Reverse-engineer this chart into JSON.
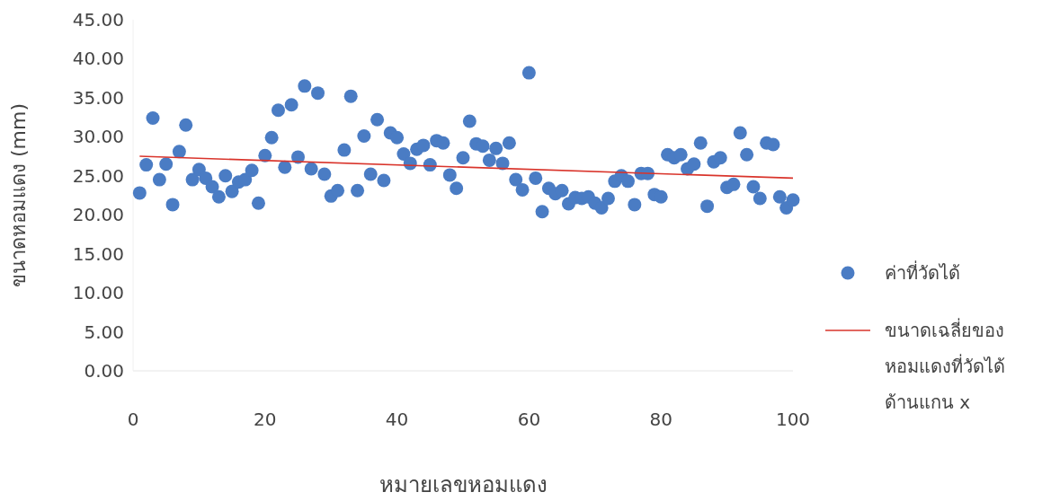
{
  "chart_data": {
    "type": "scatter",
    "xlabel": "หมายเลขหอมแดง",
    "ylabel": "ขนาดหอมแดง (mm)",
    "xlim": [
      0,
      100
    ],
    "xticks": [
      0,
      20,
      40,
      60,
      80,
      100
    ],
    "ylim": [
      0,
      45
    ],
    "yticks": [
      {
        "value": 0,
        "label": "0.00"
      },
      {
        "value": 5,
        "label": "5.00"
      },
      {
        "value": 10,
        "label": "10.00"
      },
      {
        "value": 15,
        "label": "15.00"
      },
      {
        "value": 20,
        "label": "20.00"
      },
      {
        "value": 25,
        "label": "25.00"
      },
      {
        "value": 30,
        "label": "30.00"
      },
      {
        "value": 35,
        "label": "35.00"
      },
      {
        "value": 40,
        "label": "40.00"
      },
      {
        "value": 45,
        "label": "45.00"
      }
    ],
    "grid": false,
    "legend": "right",
    "series": [
      {
        "name": "ค่าที่วัดได้",
        "color": "#4a7cc4",
        "marker": "circle",
        "x": [
          1,
          2,
          3,
          4,
          5,
          6,
          7,
          8,
          9,
          10,
          11,
          12,
          13,
          14,
          15,
          16,
          17,
          18,
          19,
          20,
          21,
          22,
          23,
          24,
          25,
          26,
          27,
          28,
          29,
          30,
          31,
          32,
          33,
          34,
          35,
          36,
          37,
          38,
          39,
          40,
          41,
          42,
          43,
          44,
          45,
          46,
          47,
          48,
          49,
          50,
          51,
          52,
          53,
          54,
          55,
          56,
          57,
          58,
          59,
          60,
          61,
          62,
          63,
          64,
          65,
          66,
          67,
          68,
          69,
          70,
          71,
          72,
          73,
          74,
          75,
          76,
          77,
          78,
          79,
          80,
          81,
          82,
          83,
          84,
          85,
          86,
          87,
          88,
          89,
          90,
          91,
          92,
          93,
          94,
          95,
          96,
          97,
          98,
          99,
          100
        ],
        "values": [
          22.8,
          26.4,
          32.4,
          24.5,
          26.5,
          21.3,
          28.1,
          31.5,
          24.5,
          25.8,
          24.7,
          23.6,
          22.3,
          25.0,
          23.0,
          24.2,
          24.5,
          25.7,
          21.5,
          27.6,
          29.9,
          33.4,
          26.1,
          34.1,
          27.4,
          36.5,
          25.9,
          35.6,
          25.2,
          22.4,
          23.1,
          28.3,
          35.2,
          23.1,
          30.1,
          25.2,
          32.2,
          24.4,
          30.5,
          29.9,
          27.8,
          26.6,
          28.4,
          28.9,
          26.4,
          29.5,
          29.2,
          25.1,
          23.4,
          27.3,
          32.0,
          29.1,
          28.8,
          27.0,
          28.5,
          26.6,
          29.2,
          24.5,
          23.2,
          38.2,
          24.7,
          20.4,
          23.4,
          22.7,
          23.1,
          21.4,
          22.2,
          22.1,
          22.3,
          21.5,
          20.9,
          22.1,
          24.3,
          25.0,
          24.3,
          21.3,
          25.3,
          25.3,
          22.6,
          22.3,
          27.7,
          27.3,
          27.7,
          25.9,
          26.5,
          29.2,
          21.1,
          26.8,
          27.3,
          23.5,
          23.9,
          30.5,
          27.7,
          23.6,
          22.1,
          29.2,
          29.0,
          22.3,
          20.9,
          21.9
        ]
      },
      {
        "name": "ขนาดเฉลี่ยของหอมแดงที่วัดได้ด้านแกน x",
        "type": "line",
        "color": "#d9342b",
        "line_style": "solid",
        "x": [
          1,
          100
        ],
        "values": [
          27.5,
          24.7
        ]
      }
    ]
  }
}
